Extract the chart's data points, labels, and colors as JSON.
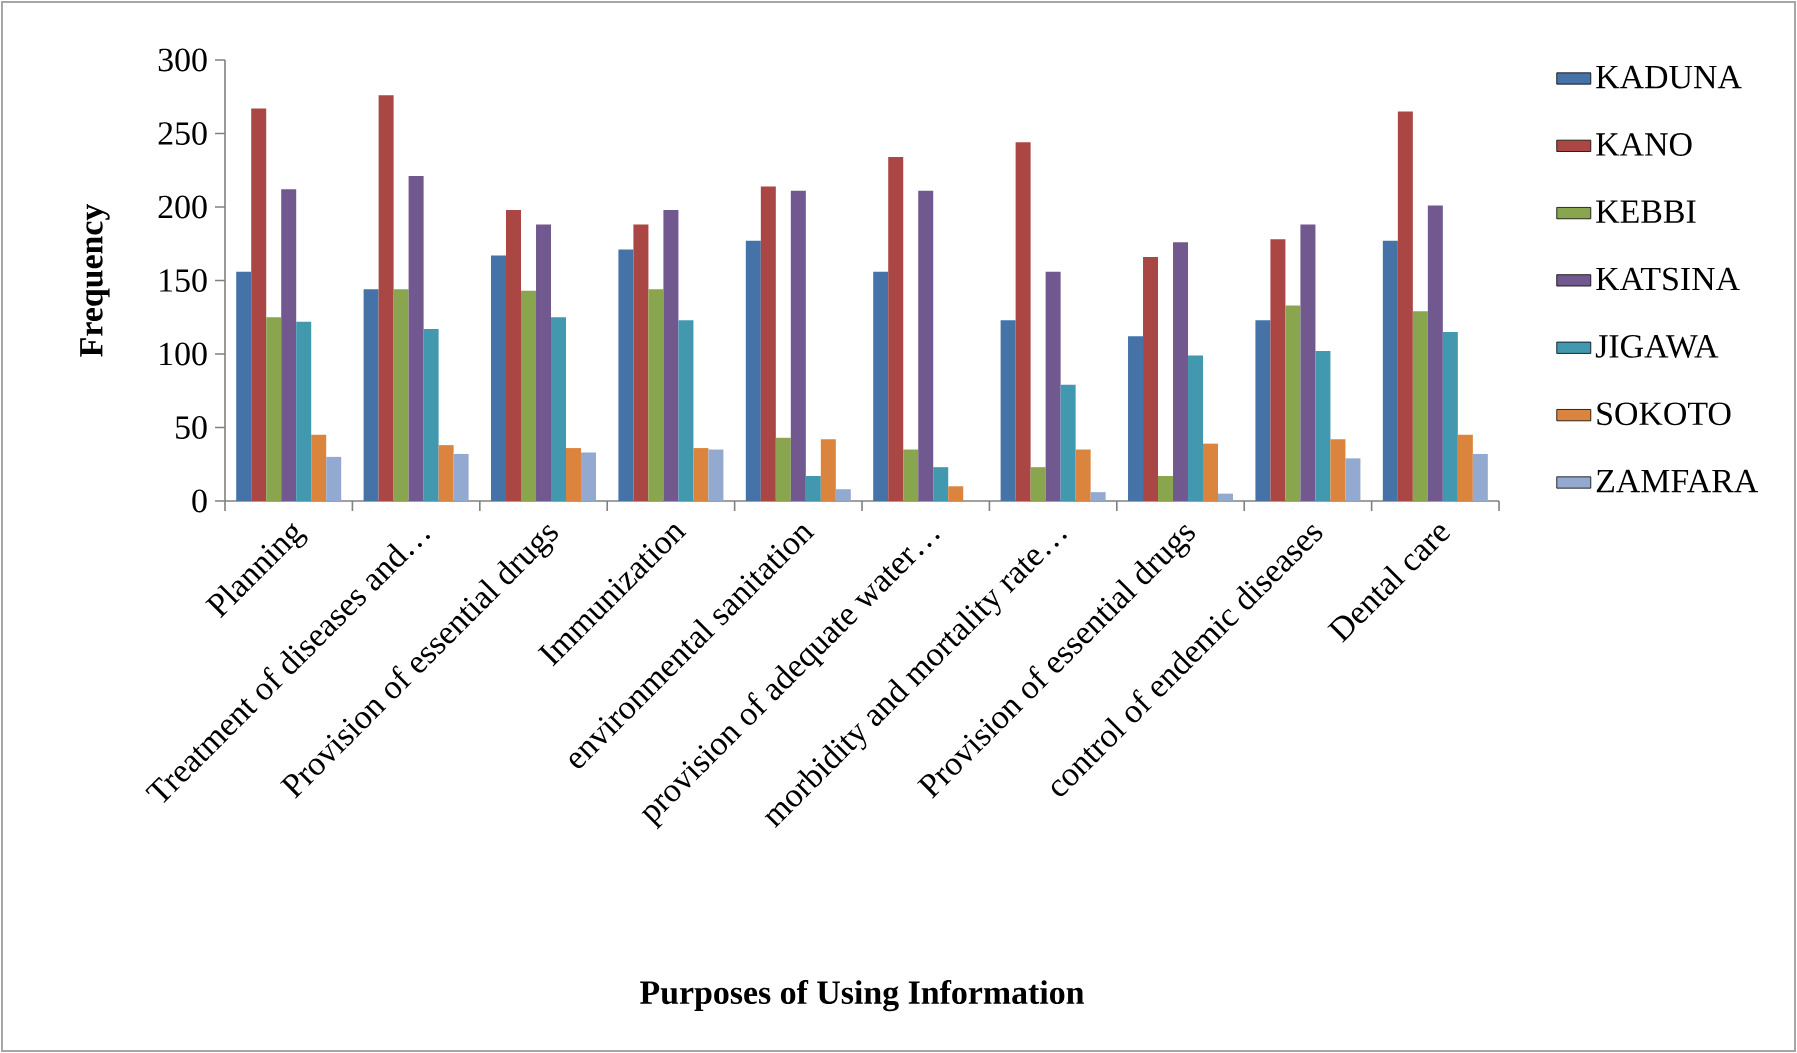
{
  "chart_data": {
    "type": "bar",
    "xlabel": "Purposes of Using Information",
    "ylabel": "Frequency",
    "categories": [
      "Planning",
      "Treatment of diseases and…",
      "Provision of essential drugs",
      "Immunization",
      "environmental sanitation",
      "provision of adequate water…",
      "morbidity and mortality rate…",
      "Provision of essential drugs",
      "control of endemic diseases",
      "Dental care"
    ],
    "series": [
      {
        "name": "KADUNA",
        "color": "#4572a7",
        "values": [
          156,
          144,
          167,
          171,
          177,
          156,
          123,
          112,
          123,
          177
        ]
      },
      {
        "name": "KANO",
        "color": "#aa4643",
        "values": [
          267,
          276,
          198,
          188,
          214,
          234,
          244,
          166,
          178,
          265
        ]
      },
      {
        "name": "KEBBI",
        "color": "#89a54e",
        "values": [
          125,
          144,
          143,
          144,
          43,
          35,
          23,
          17,
          133,
          129
        ]
      },
      {
        "name": "KATSINA",
        "color": "#71588f",
        "values": [
          212,
          221,
          188,
          198,
          211,
          211,
          156,
          176,
          188,
          201
        ]
      },
      {
        "name": "JIGAWA",
        "color": "#4198af",
        "values": [
          122,
          117,
          125,
          123,
          17,
          23,
          79,
          99,
          102,
          115
        ]
      },
      {
        "name": "SOKOTO",
        "color": "#db843d",
        "values": [
          45,
          38,
          36,
          36,
          42,
          10,
          35,
          39,
          42,
          45
        ]
      },
      {
        "name": "ZAMFARA",
        "color": "#93a9cf",
        "values": [
          30,
          32,
          33,
          35,
          8,
          null,
          6,
          5,
          29,
          32
        ]
      }
    ],
    "ylim": [
      0,
      300
    ],
    "yticks": [
      0,
      50,
      100,
      150,
      200,
      250,
      300
    ],
    "legend": "right",
    "grid": false
  }
}
